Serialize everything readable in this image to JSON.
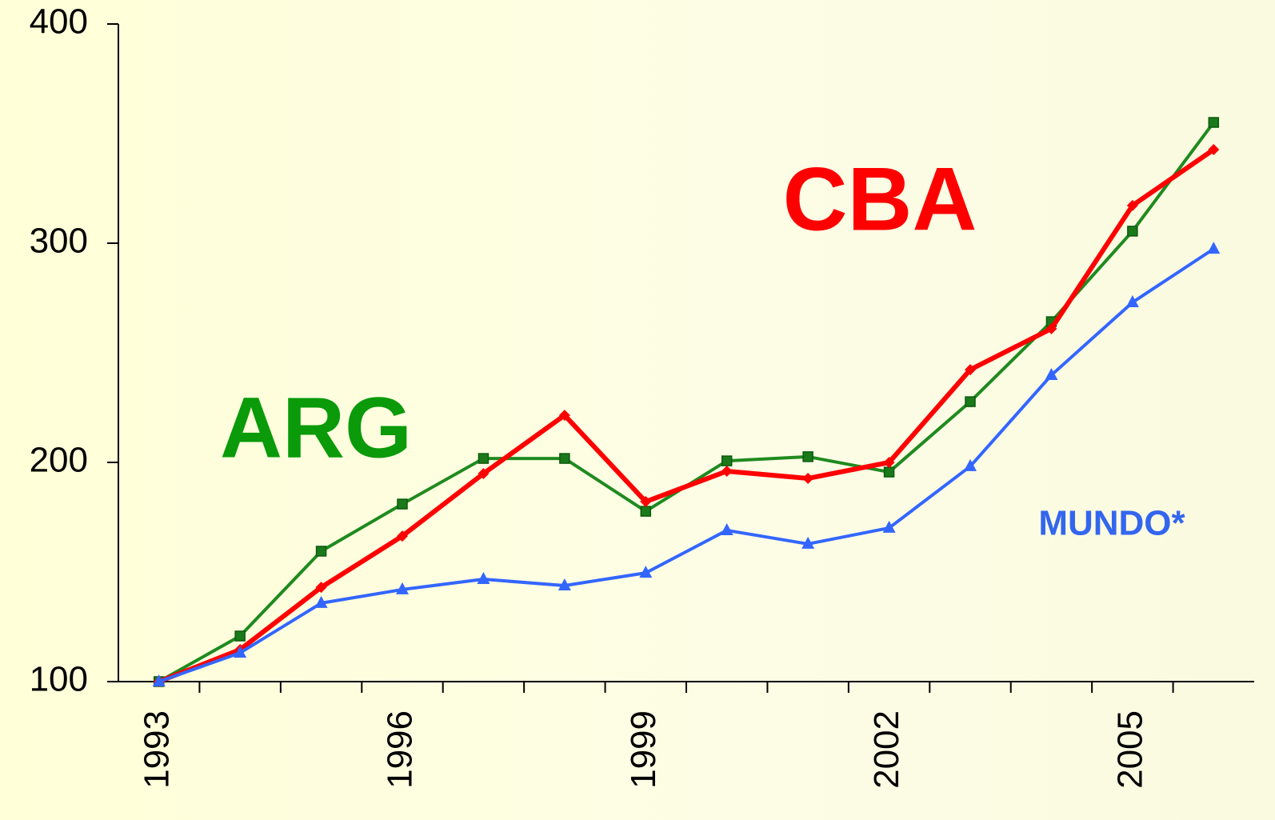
{
  "chart_data": {
    "type": "line",
    "categories": [
      "1993",
      null,
      null,
      "1996",
      null,
      null,
      "1999",
      null,
      null,
      "2002",
      null,
      null,
      "2005",
      null
    ],
    "ylim": [
      100,
      400
    ],
    "yticks": [
      100,
      200,
      300,
      400
    ],
    "series": [
      {
        "name": "ARG",
        "color": "#1f8a1f",
        "label_color": "#0a9a0a",
        "marker": "square",
        "values": [
          100,
          120.8,
          159.5,
          181,
          201.8,
          201.8,
          177.7,
          200.7,
          202.6,
          195.6,
          227.7,
          264.2,
          305.5,
          355.1
        ]
      },
      {
        "name": "CBA",
        "color": "#ff0000",
        "label_color": "#ff0000",
        "marker": "diamond",
        "values": [
          100,
          114.6,
          143,
          166.4,
          194.9,
          221.5,
          182.1,
          196,
          192.7,
          200,
          242.3,
          261,
          317.2,
          342.7
        ]
      },
      {
        "name": "MUNDO*",
        "color": "#3366ff",
        "label_color": "#3366ee",
        "marker": "triangle",
        "values": [
          100,
          113.1,
          135.8,
          142,
          146.7,
          143.8,
          149.6,
          169,
          162.8,
          170.1,
          198.2,
          239.8,
          273,
          297.4
        ]
      }
    ]
  }
}
